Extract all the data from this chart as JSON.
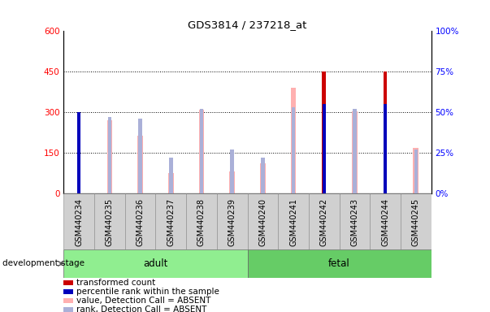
{
  "title": "GDS3814 / 237218_at",
  "samples": [
    "GSM440234",
    "GSM440235",
    "GSM440236",
    "GSM440237",
    "GSM440238",
    "GSM440239",
    "GSM440240",
    "GSM440241",
    "GSM440242",
    "GSM440243",
    "GSM440244",
    "GSM440245"
  ],
  "transformed_count": [
    300,
    0,
    0,
    0,
    0,
    0,
    0,
    0,
    450,
    0,
    450,
    0
  ],
  "percentile_rank": [
    50,
    0,
    0,
    0,
    0,
    0,
    0,
    0,
    55,
    0,
    55,
    0
  ],
  "absent_value": [
    0,
    270,
    215,
    75,
    310,
    80,
    110,
    390,
    0,
    305,
    0,
    170
  ],
  "absent_rank": [
    0,
    47,
    46,
    22,
    52,
    27,
    22,
    53,
    0,
    52,
    0,
    27
  ],
  "group": [
    "adult",
    "adult",
    "adult",
    "adult",
    "adult",
    "adult",
    "fetal",
    "fetal",
    "fetal",
    "fetal",
    "fetal",
    "fetal"
  ],
  "adult_color": "#90ee90",
  "fetal_color": "#66cc66",
  "ylim_left": [
    0,
    600
  ],
  "ylim_right": [
    0,
    100
  ],
  "yticks_left": [
    0,
    150,
    300,
    450,
    600
  ],
  "yticks_right": [
    0,
    25,
    50,
    75,
    100
  ],
  "red_color": "#cc0000",
  "blue_color": "#0000bb",
  "pink_color": "#ffb0b0",
  "lavender_color": "#aab0d8",
  "gray_bg": "#d0d0d0"
}
